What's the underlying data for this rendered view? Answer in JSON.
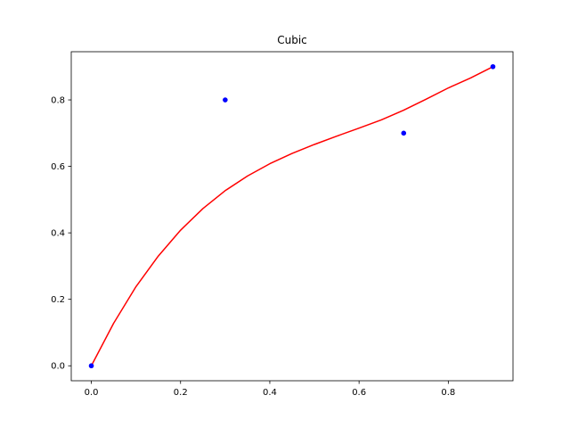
{
  "chart_data": {
    "type": "line",
    "title": "Cubic",
    "xlabel": "",
    "ylabel": "",
    "xlim": [
      -0.045,
      0.945
    ],
    "ylim": [
      -0.045,
      0.945
    ],
    "grid": false,
    "x_ticks": [
      0.0,
      0.2,
      0.4,
      0.6,
      0.8
    ],
    "x_tick_labels": [
      "0.0",
      "0.2",
      "0.4",
      "0.6",
      "0.8"
    ],
    "y_ticks": [
      0.0,
      0.2,
      0.4,
      0.6,
      0.8
    ],
    "y_tick_labels": [
      "0.0",
      "0.2",
      "0.4",
      "0.6",
      "0.8"
    ],
    "series": [
      {
        "kind": "scatter",
        "color": "#0000ff",
        "x": [
          0.0,
          0.3,
          0.7,
          0.9
        ],
        "y": [
          0.0,
          0.8,
          0.7,
          0.9
        ]
      },
      {
        "kind": "line",
        "color": "#ff0000",
        "x": [
          0.0,
          0.05,
          0.1,
          0.15,
          0.2,
          0.25,
          0.3,
          0.35,
          0.4,
          0.45,
          0.5,
          0.55,
          0.6,
          0.65,
          0.7,
          0.75,
          0.8,
          0.85,
          0.9
        ],
        "y": [
          0.0,
          0.128,
          0.238,
          0.33,
          0.408,
          0.473,
          0.527,
          0.571,
          0.608,
          0.639,
          0.666,
          0.691,
          0.715,
          0.74,
          0.769,
          0.802,
          0.836,
          0.866,
          0.9
        ]
      }
    ]
  }
}
